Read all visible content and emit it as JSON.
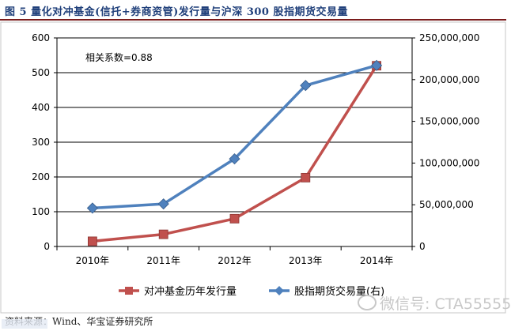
{
  "header": {
    "title": "图 5   量化对冲基金(信托+券商资管)发行量与沪深 300 股指期货交易量"
  },
  "source": {
    "text": "资料来源：Wind、华宝证券研究所"
  },
  "watermark": {
    "text": "微信号: CTA55555"
  },
  "chart_data": {
    "type": "line",
    "title": "",
    "xlabel": "",
    "ylabel": "",
    "categories": [
      "2010年",
      "2011年",
      "2012年",
      "2013年",
      "2014年"
    ],
    "ylim_left": [
      0,
      600
    ],
    "yticks_left": [
      0,
      100,
      200,
      300,
      400,
      500,
      600
    ],
    "ylim_right": [
      0,
      250000000
    ],
    "yticks_right": [
      "0",
      "50,000,000",
      "100,000,000",
      "150,000,000",
      "200,000,000",
      "250,000,000"
    ],
    "grid": true,
    "legend_position": "bottom",
    "annotation": "相关系数=0.88",
    "series": [
      {
        "name": "对冲基金历年发行量",
        "axis": "left",
        "marker": "square",
        "color": "#c0504d",
        "values": [
          15,
          35,
          80,
          198,
          520
        ]
      },
      {
        "name": "股指期货交易量(右)",
        "axis": "right",
        "marker": "diamond",
        "color": "#4f81bd",
        "values": [
          46000000,
          51000000,
          105000000,
          193000000,
          217000000
        ]
      }
    ]
  }
}
